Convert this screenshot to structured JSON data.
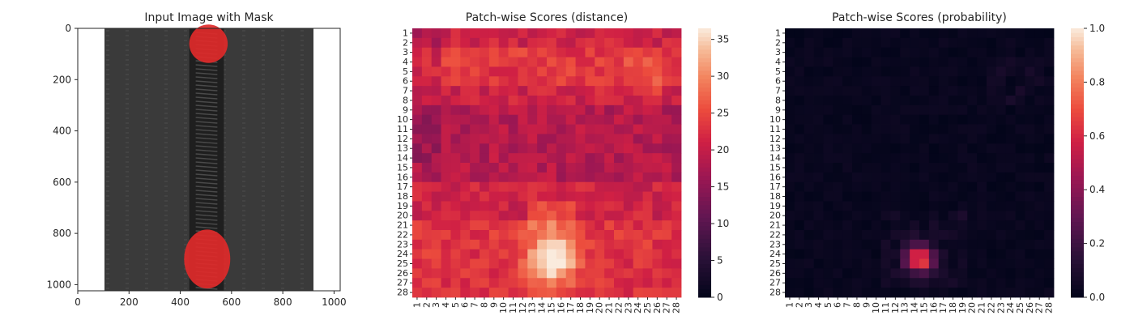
{
  "figure": {
    "background": "#ffffff"
  },
  "chart_data": [
    {
      "type": "image",
      "title": "Input Image with Mask",
      "xlabel": "",
      "ylabel": "",
      "x_ticks": [
        0,
        200,
        400,
        600,
        800,
        1000
      ],
      "y_ticks": [
        0,
        200,
        400,
        600,
        800,
        1000
      ],
      "xlim": [
        0,
        1024
      ],
      "ylim": [
        1024,
        0
      ],
      "image_content": "dark grey zipper tape with a black coil zipper running vertically; two red mask regions over the top and bottom parts of the zipper",
      "mask_color": "#e02a2a",
      "image_color": "#3a3a3a",
      "mask_regions": [
        {
          "center": [
            510,
            60
          ],
          "radius": [
            75,
            75
          ]
        },
        {
          "center": [
            505,
            900
          ],
          "radius": [
            90,
            115
          ]
        }
      ],
      "zipper_band": [
        435,
        570
      ]
    },
    {
      "type": "heatmap",
      "title": "Patch-wise Scores (distance)",
      "xlabel": "",
      "ylabel": "",
      "row_labels": [
        "1",
        "2",
        "3",
        "4",
        "5",
        "6",
        "7",
        "8",
        "9",
        "10",
        "11",
        "12",
        "13",
        "14",
        "15",
        "16",
        "17",
        "18",
        "19",
        "20",
        "21",
        "22",
        "23",
        "24",
        "25",
        "26",
        "27",
        "28"
      ],
      "col_labels": [
        "1",
        "2",
        "3",
        "4",
        "5",
        "6",
        "7",
        "8",
        "9",
        "10",
        "11",
        "12",
        "13",
        "14",
        "15",
        "16",
        "17",
        "18",
        "19",
        "20",
        "21",
        "22",
        "23",
        "24",
        "25",
        "26",
        "27",
        "28"
      ],
      "colorbar": {
        "ticks": [
          0,
          5,
          10,
          15,
          20,
          25,
          30,
          35
        ],
        "range": [
          0,
          36.5
        ]
      },
      "value_range": [
        0,
        36.5
      ],
      "colormap": "rocket",
      "values_estimated": {
        "baseline": 21,
        "row3_to_6_peak": 24,
        "hotspot_center_row_col": [
          24.5,
          15
        ],
        "hotspot_peak": 36.5
      }
    },
    {
      "type": "heatmap",
      "title": "Patch-wise Scores (probability)",
      "xlabel": "",
      "ylabel": "",
      "row_labels": [
        "1",
        "2",
        "3",
        "4",
        "5",
        "6",
        "7",
        "8",
        "9",
        "10",
        "11",
        "12",
        "13",
        "14",
        "15",
        "16",
        "17",
        "18",
        "19",
        "20",
        "21",
        "22",
        "23",
        "24",
        "25",
        "26",
        "27",
        "28"
      ],
      "col_labels": [
        "1",
        "2",
        "3",
        "4",
        "5",
        "6",
        "7",
        "8",
        "9",
        "10",
        "11",
        "12",
        "13",
        "14",
        "15",
        "16",
        "17",
        "18",
        "19",
        "20",
        "21",
        "22",
        "23",
        "24",
        "25",
        "26",
        "27",
        "28"
      ],
      "colorbar": {
        "ticks": [
          0.0,
          0.2,
          0.4,
          0.6,
          0.8,
          1.0
        ],
        "range": [
          0,
          1.0
        ]
      },
      "value_range": [
        0,
        1.0
      ],
      "colormap": "rocket",
      "values_estimated": {
        "baseline": 0.0,
        "hotspot_center_row_col": [
          24.5,
          14.5
        ],
        "hotspot_peak": 0.7
      }
    }
  ]
}
